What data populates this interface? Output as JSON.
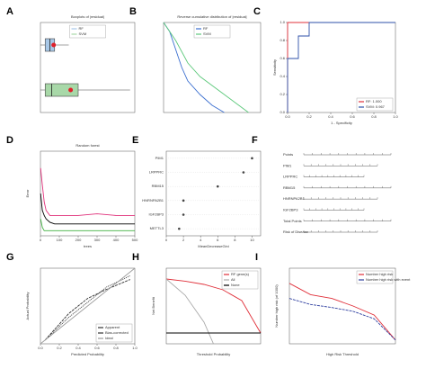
{
  "chart_data": [
    {
      "label": "A",
      "type": "box",
      "title": "Boxplots of |residual|",
      "legend": "top",
      "xlim": [
        0,
        1
      ],
      "series": [
        {
          "name": "RF",
          "color": "#a8c8e8",
          "min": 0.0,
          "q1": 0.05,
          "median": 0.1,
          "q3": 0.15,
          "max": 0.3,
          "mean": 0.14
        },
        {
          "name": "SVM",
          "color": "#a8d8a8",
          "min": 0.0,
          "q1": 0.05,
          "median": 0.12,
          "q3": 0.4,
          "max": 0.95,
          "mean": 0.32
        }
      ]
    },
    {
      "label": "B",
      "type": "line",
      "title": "Reverse cumulative distribution of |residual|",
      "legend": "top",
      "xlim": [
        0,
        0.8
      ],
      "ylim": [
        0,
        100
      ],
      "series": [
        {
          "name": "RF",
          "color": "#3b6fd0",
          "x": [
            0,
            0.05,
            0.1,
            0.15,
            0.2,
            0.3,
            0.4,
            0.5
          ],
          "values": [
            100,
            90,
            70,
            50,
            35,
            20,
            8,
            0
          ]
        },
        {
          "name": "SVM",
          "color": "#5cc87a",
          "x": [
            0,
            0.1,
            0.2,
            0.3,
            0.4,
            0.5,
            0.6,
            0.7
          ],
          "values": [
            100,
            80,
            55,
            40,
            30,
            20,
            10,
            0
          ]
        }
      ]
    },
    {
      "label": "C",
      "type": "line",
      "xlabel": "1 - Specificity",
      "ylabel": "Sensitivity",
      "legend": "bottom-right",
      "xlim": [
        0,
        1
      ],
      "ylim": [
        0,
        1
      ],
      "xticks": [
        {
          "value": 0,
          "label": "0.0"
        },
        0.2,
        0.4,
        0.6,
        0.8,
        {
          "value": 1,
          "label": "1.0"
        }
      ],
      "yticks": [
        {
          "value": 0,
          "label": "0.0"
        },
        0.2,
        0.4,
        0.6,
        0.8,
        {
          "value": 1,
          "label": "1.0"
        }
      ],
      "series": [
        {
          "name": "RF: 1.000",
          "color": "#e0303a",
          "x": [
            0,
            0,
            1
          ],
          "values": [
            0,
            1,
            1
          ]
        },
        {
          "name": "SVM: 0.967",
          "color": "#2c4fa8",
          "x": [
            0,
            0,
            0.1,
            0.1,
            0.2,
            0.2,
            1
          ],
          "values": [
            0,
            0.6,
            0.6,
            0.85,
            0.85,
            1,
            1
          ]
        }
      ]
    },
    {
      "label": "D",
      "type": "line",
      "title": "Random forest",
      "xlabel": "trees",
      "ylabel": "Error",
      "xlim": [
        0,
        500
      ],
      "ylim": [
        0,
        0.5
      ],
      "xticks": [
        0,
        100,
        200,
        300,
        400,
        500
      ],
      "series": [
        {
          "color": "#000000",
          "x": [
            1,
            10,
            20,
            30,
            50,
            75,
            100,
            200,
            300,
            400,
            500
          ],
          "values": [
            0.25,
            0.15,
            0.12,
            0.1,
            0.08,
            0.07,
            0.07,
            0.07,
            0.07,
            0.07,
            0.07
          ]
        },
        {
          "color": "#e0307a",
          "x": [
            1,
            10,
            20,
            30,
            50,
            75,
            100,
            200,
            300,
            400,
            500
          ],
          "values": [
            0.4,
            0.3,
            0.2,
            0.15,
            0.12,
            0.12,
            0.12,
            0.12,
            0.13,
            0.12,
            0.12
          ]
        },
        {
          "color": "#40b040",
          "x": [
            1,
            10,
            20,
            30,
            50,
            75,
            100,
            200,
            300,
            400,
            500
          ],
          "values": [
            0.1,
            0.05,
            0.03,
            0.03,
            0.03,
            0.03,
            0.03,
            0.03,
            0.03,
            0.03,
            0.03
          ]
        }
      ]
    },
    {
      "label": "E",
      "type": "dot",
      "xlabel": "MeanDecreaseGini",
      "xlim": [
        0,
        11
      ],
      "xticks": [
        0,
        2,
        4,
        6,
        8,
        10
      ],
      "categories": [
        "PIM1",
        "LRPPRC",
        "RBM15",
        "HNRNPA2B1",
        "IGF2BP3",
        "METTL3"
      ],
      "values": [
        10,
        9,
        6,
        2,
        2,
        1.5
      ]
    },
    {
      "label": "F",
      "type": "nomogram",
      "rows": [
        "Points",
        "PIM1",
        "LRPPRC",
        "RBM15",
        "HNRNPA2B1",
        "IGF2BP3",
        "Total Points",
        "Risk of Disease"
      ]
    },
    {
      "label": "G",
      "type": "line",
      "xlabel": "Predicted Probability",
      "ylabel": "Actual Probability",
      "legend": "bottom-right",
      "xlim": [
        0,
        1
      ],
      "ylim": [
        0,
        1
      ],
      "xticks": [
        {
          "value": 0,
          "label": "0.0"
        },
        0.2,
        0.4,
        0.6,
        0.8,
        {
          "value": 1,
          "label": "1.0"
        }
      ],
      "series": [
        {
          "name": "Apparent",
          "color": "#333333",
          "dash": "1,1",
          "x": [
            0.05,
            0.3,
            0.5,
            0.7,
            0.95
          ],
          "values": [
            0.05,
            0.35,
            0.55,
            0.75,
            0.9
          ]
        },
        {
          "name": "Bias-corrected",
          "color": "#333333",
          "dash": "3,1",
          "x": [
            0.05,
            0.3,
            0.5,
            0.7,
            0.95
          ],
          "values": [
            0.05,
            0.4,
            0.6,
            0.72,
            0.85
          ]
        },
        {
          "name": "Ideal",
          "color": "#999999",
          "x": [
            0,
            1
          ],
          "values": [
            0,
            1
          ]
        }
      ]
    },
    {
      "label": "H",
      "type": "line",
      "xlabel": "Threshold Probability",
      "ylabel": "Net Benefit",
      "legend": "top-right",
      "xlim": [
        0,
        1
      ],
      "ylim": [
        -0.1,
        0.6
      ],
      "series": [
        {
          "name": "RF gene(s)",
          "color": "#e0303a",
          "x": [
            0,
            0.2,
            0.4,
            0.6,
            0.8,
            0.9,
            1
          ],
          "values": [
            0.5,
            0.48,
            0.45,
            0.4,
            0.3,
            0.15,
            0
          ]
        },
        {
          "name": "All",
          "color": "#aaaaaa",
          "x": [
            0,
            0.2,
            0.4,
            0.5
          ],
          "values": [
            0.5,
            0.35,
            0.1,
            -0.1
          ]
        },
        {
          "name": "None",
          "color": "#000000",
          "x": [
            0,
            1
          ],
          "values": [
            0,
            0
          ]
        }
      ]
    },
    {
      "label": "I",
      "type": "line",
      "xlabel": "High Risk Threshold",
      "ylabel": "Number high risk (of 1000)",
      "legend": "top-right",
      "xlim": [
        0,
        1
      ],
      "ylim": [
        0,
        1000
      ],
      "series": [
        {
          "name": "Number high risk",
          "color": "#e0303a",
          "x": [
            0,
            0.2,
            0.4,
            0.6,
            0.8,
            1
          ],
          "values": [
            800,
            650,
            600,
            500,
            380,
            50
          ]
        },
        {
          "name": "Number high risk with event",
          "color": "#3040a0",
          "dash": "3,1",
          "x": [
            0,
            0.2,
            0.4,
            0.6,
            0.8,
            1
          ],
          "values": [
            600,
            520,
            480,
            430,
            330,
            50
          ]
        }
      ]
    }
  ]
}
